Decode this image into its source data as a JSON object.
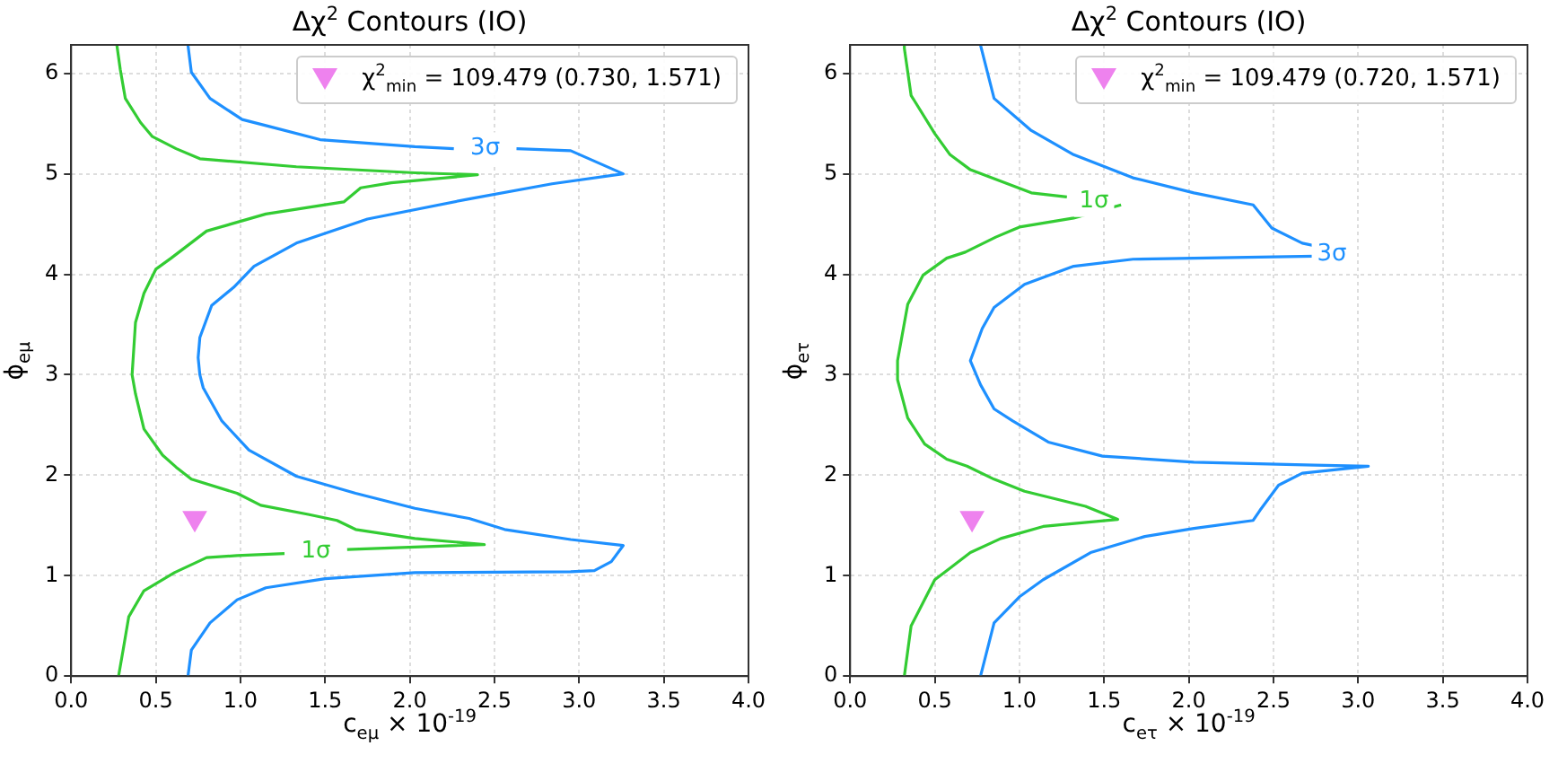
{
  "chart_data": [
    {
      "type": "line",
      "title": "Δχ$^{2}$ Contours (IO)",
      "xlabel": "c$_{eμ}$ × 10$^{-19}$",
      "ylabel": "ϕ$_{eμ}$",
      "xlim": [
        0,
        4
      ],
      "xticks": [
        {
          "value": 0,
          "label": "0.0"
        },
        {
          "value": 0.5,
          "label": "0.5"
        },
        {
          "value": 1,
          "label": "1.0"
        },
        {
          "value": 1.5,
          "label": "1.5"
        },
        {
          "value": 2,
          "label": "2.0"
        },
        {
          "value": 2.5,
          "label": "2.5"
        },
        {
          "value": 3,
          "label": "3.0"
        },
        {
          "value": 3.5,
          "label": "3.5"
        },
        {
          "value": 4,
          "label": "4.0"
        }
      ],
      "ylim": [
        0,
        6.283
      ],
      "yticks": [
        0,
        1,
        2,
        3,
        4,
        5,
        6
      ],
      "grid": true,
      "legend": "top right",
      "series": [
        {
          "name": "1σ",
          "color": "#33cc33",
          "x": [
            0.28,
            0.31,
            0.34,
            0.43,
            0.61,
            0.8,
            0.98,
            1.26,
            null,
            1.63,
            2.44,
            2.03,
            1.68,
            1.57,
            1.4,
            1.12,
            0.98,
            0.71,
            0.62,
            0.54,
            0.43,
            0.38,
            0.36,
            0.38,
            0.43,
            0.5,
            0.59,
            0.8,
            1.15,
            1.61,
            1.71,
            1.89,
            2.4,
            2.03,
            1.33,
            0.76,
            0.62,
            0.48,
            0.41,
            0.32,
            0.29,
            0.27
          ],
          "values": [
            0,
            0.29,
            0.59,
            0.85,
            1.03,
            1.18,
            1.2,
            1.22,
            null,
            1.26,
            1.31,
            1.37,
            1.46,
            1.55,
            1.61,
            1.7,
            1.82,
            1.96,
            2.08,
            2.2,
            2.46,
            2.81,
            3.0,
            3.52,
            3.81,
            4.05,
            4.16,
            4.43,
            4.6,
            4.72,
            4.86,
            4.91,
            4.99,
            5.01,
            5.07,
            5.15,
            5.25,
            5.37,
            5.51,
            5.75,
            6.04,
            6.28
          ]
        },
        {
          "name": "3σ",
          "color": "#1e90ff",
          "x": [
            0.69,
            0.71,
            0.82,
            0.98,
            1.15,
            1.5,
            2.03,
            2.95,
            3.09,
            3.19,
            3.26,
            2.95,
            2.56,
            2.35,
            2.03,
            1.68,
            1.33,
            1.05,
            0.89,
            0.78,
            0.76,
            0.75,
            0.76,
            0.83,
            0.96,
            1.08,
            1.33,
            1.75,
            2.35,
            2.84,
            3.26,
            2.95,
            2.63,
            null,
            2.26,
            2.03,
            1.47,
            1.15,
            1.01,
            0.82,
            0.71,
            0.69
          ],
          "values": [
            0,
            0.26,
            0.53,
            0.76,
            0.88,
            0.97,
            1.03,
            1.04,
            1.05,
            1.14,
            1.3,
            1.36,
            1.46,
            1.57,
            1.67,
            1.82,
            1.99,
            2.25,
            2.54,
            2.87,
            3.0,
            3.17,
            3.37,
            3.69,
            3.87,
            4.08,
            4.31,
            4.55,
            4.75,
            4.9,
            5.0,
            5.23,
            5.25,
            null,
            5.25,
            5.27,
            5.34,
            5.48,
            5.54,
            5.75,
            6.01,
            6.28
          ]
        },
        {
          "type": "scatter",
          "name": "χ$^{2}$$_{min}$ = 109.479 (0.730, 1.571)",
          "color": "#ee82ee",
          "marker": "triangle",
          "x": [
            0.73
          ],
          "values": [
            1.571
          ]
        }
      ]
    },
    {
      "type": "line",
      "title": "Δχ$^{2}$ Contours (IO)",
      "xlabel": "c$_{eτ}$ × 10$^{-19}$",
      "ylabel": "ϕ$_{eτ}$",
      "xlim": [
        0,
        4
      ],
      "xticks": [
        {
          "value": 0,
          "label": "0.0"
        },
        {
          "value": 0.5,
          "label": "0.5"
        },
        {
          "value": 1,
          "label": "1.0"
        },
        {
          "value": 1.5,
          "label": "1.5"
        },
        {
          "value": 2,
          "label": "2.0"
        },
        {
          "value": 2.5,
          "label": "2.5"
        },
        {
          "value": 3,
          "label": "3.0"
        },
        {
          "value": 3.5,
          "label": "3.5"
        },
        {
          "value": 4,
          "label": "4.0"
        }
      ],
      "ylim": [
        0,
        6.283
      ],
      "yticks": [
        0,
        1,
        2,
        3,
        4,
        5,
        6
      ],
      "grid": true,
      "legend": "top right",
      "series": [
        {
          "name": "1σ",
          "color": "#33cc33",
          "x": [
            0.32,
            0.36,
            0.43,
            0.5,
            0.57,
            0.71,
            0.89,
            1.14,
            1.58,
            1.39,
            1.03,
            0.85,
            0.69,
            0.57,
            0.44,
            0.34,
            0.28,
            0.28,
            0.34,
            0.43,
            0.57,
            0.68,
            0.86,
            1.0,
            1.32,
            1.6,
            null,
            1.28,
            1.07,
            0.71,
            0.59,
            0.5,
            0.36,
            0.32,
            0.32
          ],
          "values": [
            0,
            0.5,
            0.73,
            0.96,
            1.05,
            1.23,
            1.37,
            1.49,
            1.56,
            1.69,
            1.84,
            1.96,
            2.09,
            2.16,
            2.31,
            2.57,
            2.95,
            3.14,
            3.7,
            3.99,
            4.16,
            4.22,
            4.37,
            4.47,
            4.56,
            4.69,
            null,
            4.77,
            4.81,
            5.04,
            5.19,
            5.4,
            5.78,
            6.25,
            6.28
          ]
        },
        {
          "name": "3σ",
          "color": "#1e90ff",
          "x": [
            0.77,
            0.85,
            1.0,
            1.14,
            1.42,
            1.74,
            2.03,
            2.38,
            2.42,
            2.53,
            2.67,
            3.06,
            2.74,
            2.03,
            1.49,
            1.17,
            0.96,
            0.85,
            0.77,
            0.71,
            0.78,
            0.85,
            1.03,
            1.32,
            1.67,
            2.74,
            null,
            2.95,
            2.67,
            2.49,
            2.38,
            2.03,
            1.67,
            1.32,
            1.07,
            0.85,
            0.77
          ],
          "values": [
            0,
            0.53,
            0.79,
            0.96,
            1.23,
            1.39,
            1.47,
            1.55,
            1.65,
            1.9,
            2.02,
            2.09,
            2.1,
            2.13,
            2.19,
            2.33,
            2.54,
            2.66,
            2.9,
            3.14,
            3.46,
            3.67,
            3.9,
            4.08,
            4.15,
            4.18,
            null,
            4.21,
            4.31,
            4.46,
            4.69,
            4.81,
            4.96,
            5.19,
            5.43,
            5.75,
            6.28
          ]
        },
        {
          "type": "scatter",
          "name": "χ$^{2}$$_{min}$ = 109.479 (0.720, 1.571)",
          "color": "#ee82ee",
          "marker": "triangle",
          "x": [
            0.72
          ],
          "values": [
            1.571
          ]
        }
      ]
    }
  ]
}
